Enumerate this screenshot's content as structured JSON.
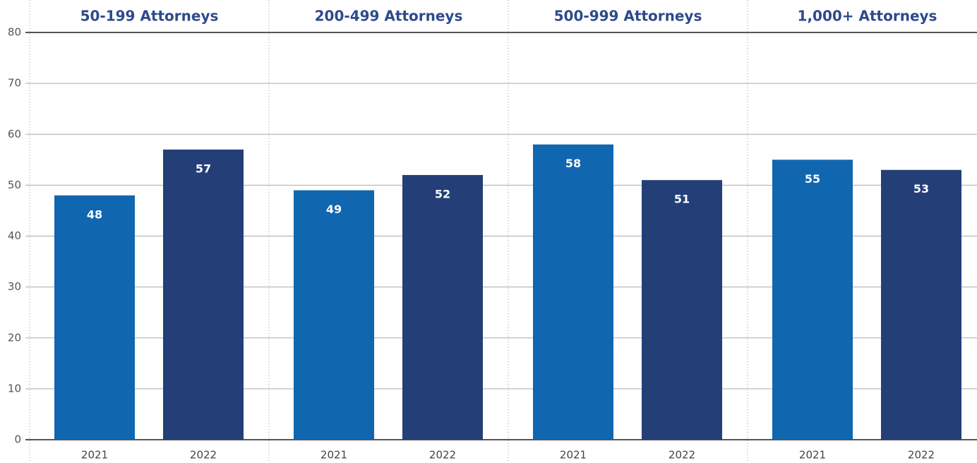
{
  "chart_data": {
    "type": "bar",
    "categories": [
      "50-199 Attorneys",
      "200-499 Attorneys",
      "500-999 Attorneys",
      "1,000+ Attorneys"
    ],
    "series": [
      {
        "name": "2021",
        "color": "#1166b0",
        "values": [
          48,
          49,
          58,
          55
        ]
      },
      {
        "name": "2022",
        "color": "#243f78",
        "values": [
          57,
          52,
          51,
          53
        ]
      }
    ],
    "ylim": [
      0,
      80
    ],
    "yticks": [
      0,
      10,
      20,
      30,
      40,
      50,
      60,
      70,
      80
    ],
    "grid": true
  }
}
